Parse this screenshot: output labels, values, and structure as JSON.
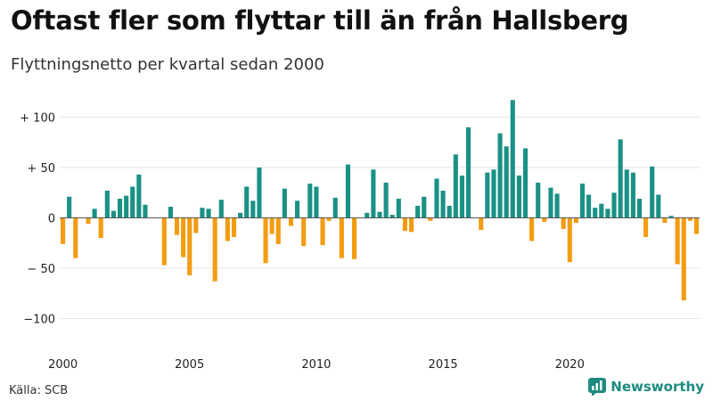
{
  "title": "Oftast fler som flyttar till än från Hallsberg",
  "subtitle": "Flyttningsnetto per kvartal sedan 2000",
  "source": "Källa: SCB",
  "brand": "Newsworthy",
  "colors": {
    "positive": "#1a9186",
    "negative": "#f39c12",
    "grid": "#e4e4e4",
    "zero": "#555555"
  },
  "chart_data": {
    "type": "bar",
    "title": "Oftast fler som flyttar till än från Hallsberg",
    "subtitle": "Flyttningsnetto per kvartal sedan 2000",
    "xlabel": "",
    "ylabel": "",
    "ylim": [
      -110,
      110
    ],
    "grid": true,
    "legend": "none",
    "y_ticks": [
      {
        "value": 100,
        "label": "+ 100"
      },
      {
        "value": 50,
        "label": "+  50"
      },
      {
        "value": 0,
        "label": "0"
      },
      {
        "value": -50,
        "label": "− 50"
      },
      {
        "value": -100,
        "label": "−100"
      }
    ],
    "x_ticks": [
      "2000",
      "2005",
      "2010",
      "2015",
      "2020"
    ],
    "start_year": 2000,
    "values": [
      -26,
      21,
      -40,
      0,
      -6,
      9,
      -20,
      27,
      7,
      19,
      22,
      31,
      43,
      13,
      0,
      0,
      -47,
      11,
      -17,
      -39,
      -57,
      -15,
      10,
      9,
      -63,
      18,
      -23,
      -19,
      5,
      31,
      17,
      50,
      -45,
      -16,
      -26,
      29,
      -8,
      17,
      -28,
      34,
      31,
      -27,
      -3,
      20,
      -40,
      53,
      -41,
      0,
      5,
      48,
      6,
      35,
      3,
      19,
      -13,
      -14,
      12,
      21,
      -3,
      39,
      27,
      12,
      63,
      42,
      90,
      0,
      -12,
      45,
      48,
      84,
      71,
      117,
      42,
      69,
      -23,
      35,
      -4,
      30,
      24,
      -11,
      -44,
      -5,
      34,
      23,
      10,
      14,
      9,
      25,
      78,
      48,
      45,
      19,
      -19,
      51,
      23,
      -5,
      2,
      -46,
      -82,
      -3,
      -16
    ]
  }
}
